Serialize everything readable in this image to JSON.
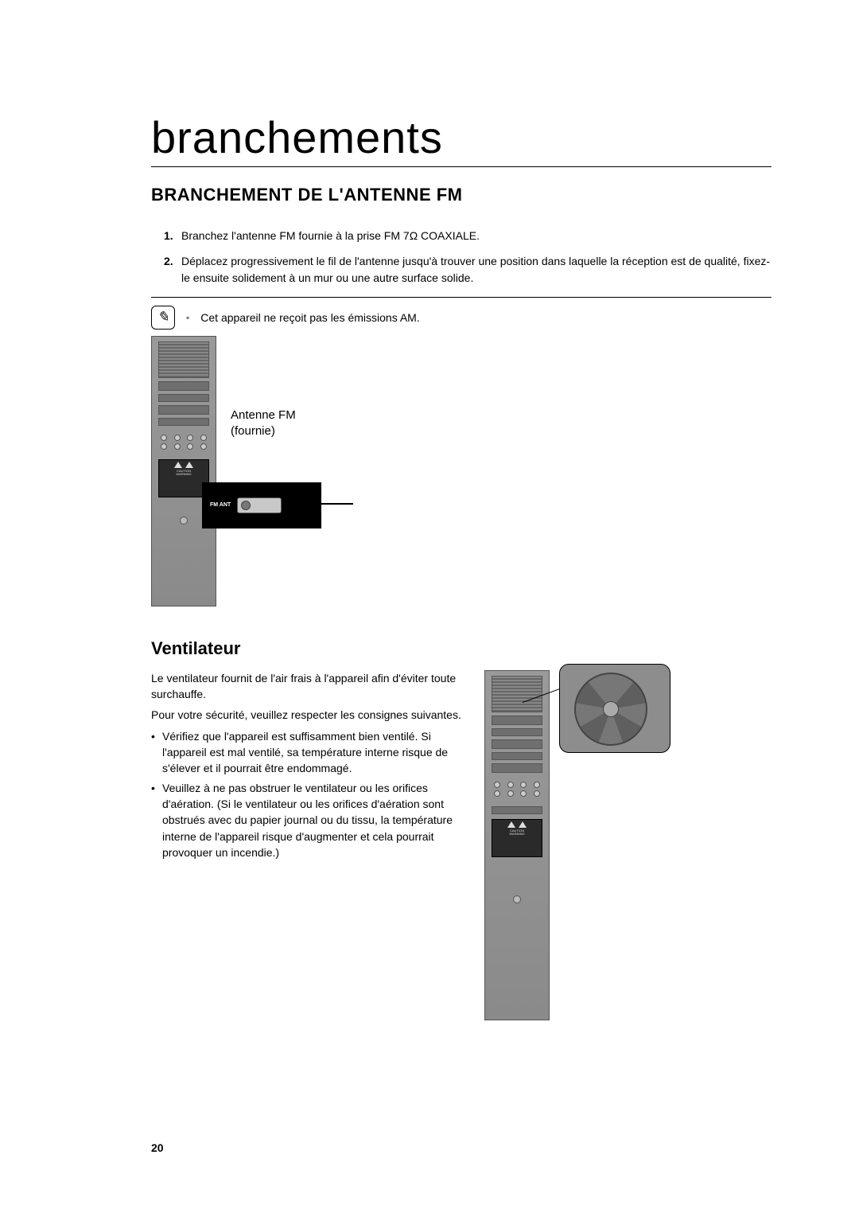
{
  "colors": {
    "text": "#000000",
    "background": "#ffffff",
    "panel_gradient_top": "#9a9a9a",
    "panel_gradient_bottom": "#8a8a8a",
    "callout_bg": "#000000",
    "callout_text": "#ffffff",
    "detail_bg": "#8d8d8d"
  },
  "typography": {
    "main_title_size_pt": 42,
    "main_title_weight": 300,
    "section_title_size_pt": 16,
    "section_title_weight": 700,
    "body_size_pt": 10.5,
    "subtitle_size_pt": 16
  },
  "page_number": "20",
  "main_title": "branchements",
  "section_antenna": {
    "title": "BRANCHEMENT DE L'ANTENNE FM",
    "steps": [
      {
        "num": "1.",
        "text": "Branchez l'antenne FM fournie à la prise FM 7Ω COAXIALE."
      },
      {
        "num": "2.",
        "text": "Déplacez progressivement le fil de l'antenne jusqu'à trouver une position dans laquelle la réception est de qualité, fixez-le ensuite solidement à un mur ou une autre surface solide."
      }
    ],
    "note_bullet": "▪",
    "note_text": "Cet appareil ne reçoit pas les émissions AM.",
    "antenna_label_line1": "Antenne FM",
    "antenna_label_line2": "(fournie)",
    "fm_ant_label": "FM ANT",
    "caution_label": "CAUTION",
    "warning_label": "WARNING"
  },
  "section_vent": {
    "title": "Ventilateur",
    "para1": "Le ventilateur fournit de l'air frais à l'appareil afin d'éviter toute surchauffe.",
    "para2": "Pour votre sécurité, veuillez respecter les consignes suivantes.",
    "bullets": [
      "Vérifiez que l'appareil est suffisamment bien ventilé. Si l'appareil est mal ventilé, sa température interne risque de s'élever et il pourrait être endommagé.",
      "Veuillez à ne pas obstruer le ventilateur ou les orifices d'aération. (Si le ventilateur ou les orifices d'aération sont obstrués avec du papier journal ou du tissu, la température interne de l'appareil risque d'augmenter et cela pourrait provoquer un incendie.)"
    ]
  }
}
